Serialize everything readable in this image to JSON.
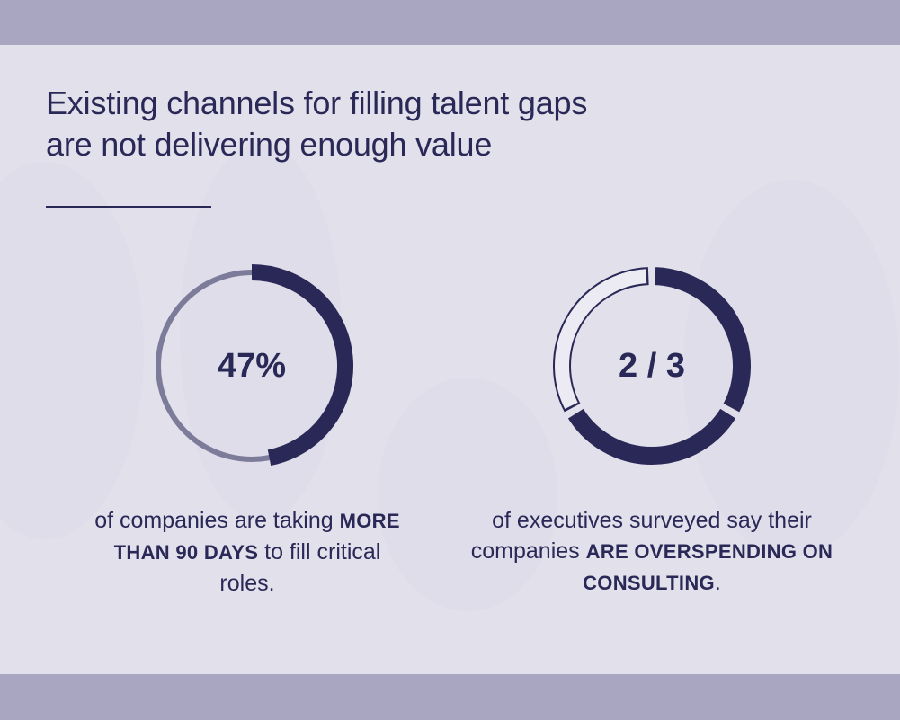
{
  "headline": {
    "line1": "Existing channels for filling talent gaps",
    "line2": "are not delivering enough value"
  },
  "stats": [
    {
      "value": "47%",
      "fraction": 0.47,
      "caption_part1": "of companies are taking",
      "caption_emphasis": "MORE THAN 90 DAYS",
      "caption_part2": "to fill critical roles."
    },
    {
      "value": "2 / 3",
      "fraction": 0.6667,
      "caption_part1": "of executives surveyed say their companies",
      "caption_emphasis": "ARE OVERSPENDING ON CONSULTING",
      "caption_part2": "."
    }
  ],
  "colors": {
    "navy": "#2a2856",
    "ring_track": "#7d7b9a",
    "panel": "#ecebf4",
    "band": "#a8a6c1"
  }
}
